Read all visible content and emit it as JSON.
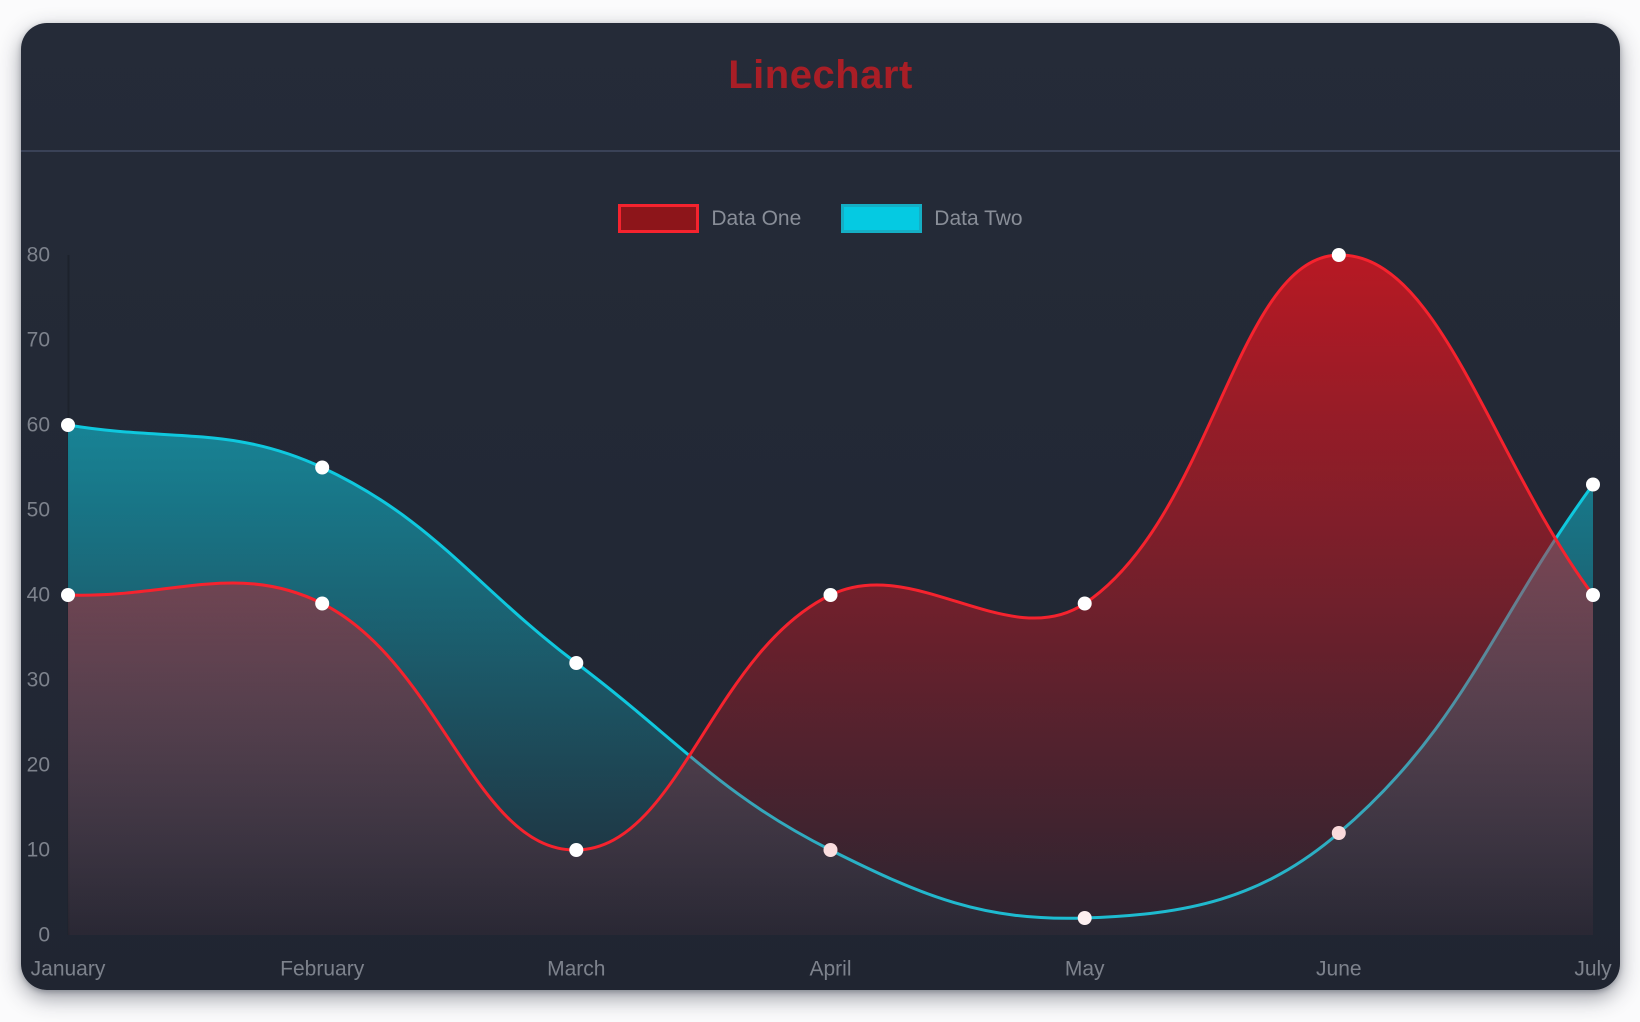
{
  "header": {
    "title": "Linechart",
    "title_color": "#a91e26",
    "divider_color": "#3a4257"
  },
  "legend": [
    {
      "label": "Data One",
      "swatch_fill": "#8d151a",
      "swatch_border": "#f5232e"
    },
    {
      "label": "Data Two",
      "swatch_fill": "#05cae2",
      "swatch_border": "#15aec4"
    }
  ],
  "chart_data": {
    "type": "line",
    "title": "Linechart",
    "x": [
      "January",
      "February",
      "March",
      "April",
      "May",
      "June",
      "July"
    ],
    "series": [
      {
        "name": "Data One",
        "values": [
          40,
          39,
          10,
          40,
          39,
          80,
          40
        ],
        "line_color": "#f5232e",
        "fill_color": "#e1141e",
        "fill_opacity_top": 0.78,
        "fill_opacity_bottom": 0.05,
        "point_color": "#ffffff"
      },
      {
        "name": "Data Two",
        "values": [
          60,
          55,
          32,
          10,
          2,
          12,
          53
        ],
        "line_color": "#0fc8de",
        "fill_color": "#0ec8de",
        "fill_opacity_top": 0.75,
        "fill_opacity_bottom": 0.02,
        "point_color": "#ffffff"
      }
    ],
    "ylim": [
      0,
      80
    ],
    "yticks": [
      0,
      10,
      20,
      30,
      40,
      50,
      60,
      70,
      80
    ],
    "grid": false,
    "fill": true,
    "curve_tension": 0.4,
    "point_radius": 7,
    "line_width": 3,
    "legend_position": "top",
    "draw_order": "last-series-first",
    "tick_color": "#7d828c",
    "axis_line_color": "#1d222c",
    "background_color": "#222835"
  }
}
